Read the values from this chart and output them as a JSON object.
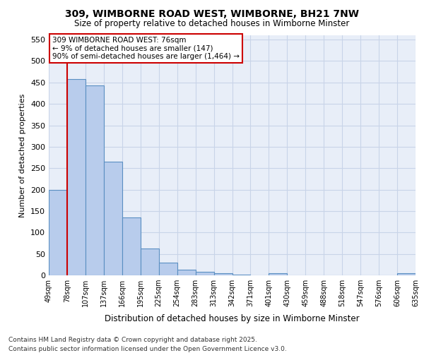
{
  "title": "309, WIMBORNE ROAD WEST, WIMBORNE, BH21 7NW",
  "subtitle": "Size of property relative to detached houses in Wimborne Minster",
  "xlabel": "Distribution of detached houses by size in Wimborne Minster",
  "ylabel": "Number of detached properties",
  "bins": [
    "49sqm",
    "78sqm",
    "107sqm",
    "137sqm",
    "166sqm",
    "195sqm",
    "225sqm",
    "254sqm",
    "283sqm",
    "313sqm",
    "342sqm",
    "371sqm",
    "401sqm",
    "430sqm",
    "459sqm",
    "488sqm",
    "518sqm",
    "547sqm",
    "576sqm",
    "606sqm",
    "635sqm"
  ],
  "bar_heights": [
    200,
    458,
    443,
    265,
    135,
    62,
    30,
    14,
    8,
    5,
    1,
    0,
    5,
    0,
    0,
    0,
    0,
    0,
    0,
    5
  ],
  "bar_color": "#b8ccec",
  "bar_edge_color": "#5a8fc2",
  "red_line_color": "#cc0000",
  "annotation_title": "309 WIMBORNE ROAD WEST: 76sqm",
  "annotation_line1": "← 9% of detached houses are smaller (147)",
  "annotation_line2": "90% of semi-detached houses are larger (1,464) →",
  "annotation_box_edge": "#cc0000",
  "grid_color": "#c8d4e8",
  "background_color": "#ffffff",
  "plot_bg_color": "#e8eef8",
  "footer1": "Contains HM Land Registry data © Crown copyright and database right 2025.",
  "footer2": "Contains public sector information licensed under the Open Government Licence v3.0.",
  "ylim": [
    0,
    560
  ],
  "yticks": [
    0,
    50,
    100,
    150,
    200,
    250,
    300,
    350,
    400,
    450,
    500,
    550
  ]
}
